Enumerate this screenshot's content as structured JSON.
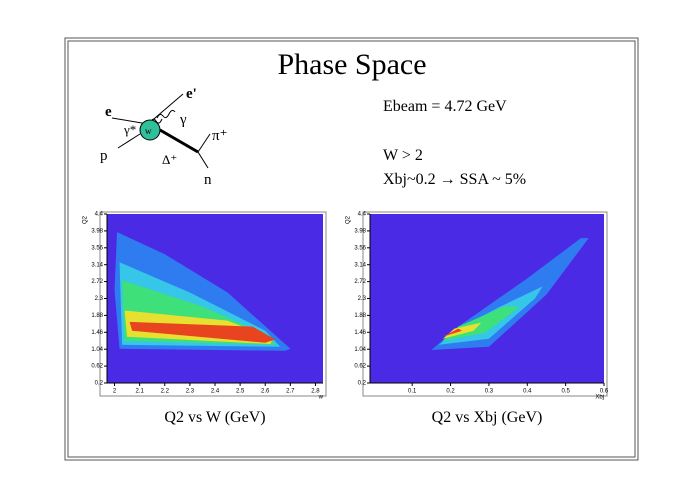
{
  "title": "Phase Space",
  "diagram": {
    "labels": [
      "e",
      "e'",
      "γ*",
      "γ",
      "w",
      "p",
      "Δ⁺",
      "π⁺",
      "n"
    ]
  },
  "notes": [
    "Ebeam = 4.72 GeV",
    "W > 2",
    "Xbj~0.2 → SSA ~ 5%"
  ],
  "chart_data": [
    {
      "type": "heatmap",
      "caption": "Q2 vs W (GeV)",
      "xlabel": "w",
      "ylabel": "Q2",
      "background": "#4b2ae6",
      "xlim": [
        1.97,
        2.83
      ],
      "ylim": [
        0.2,
        4.4
      ],
      "xticks": [
        2,
        2.1,
        2.2,
        2.3,
        2.4,
        2.5,
        2.6,
        2.7,
        2.8
      ],
      "yticks": [
        0.2,
        0.62,
        1.04,
        1.46,
        1.88,
        2.3,
        2.72,
        3.14,
        3.56,
        3.98,
        4.4
      ],
      "regions": [
        {
          "color": "#2f7cf0",
          "x": [
            2.01,
            2.2,
            2.45,
            2.7,
            2.68,
            2.02,
            2.0
          ],
          "y": [
            3.95,
            3.4,
            2.45,
            1.05,
            1.0,
            1.05,
            2.5
          ]
        },
        {
          "color": "#36c6e8",
          "x": [
            2.02,
            2.3,
            2.6,
            2.66,
            2.03
          ],
          "y": [
            3.2,
            2.45,
            1.5,
            1.1,
            1.15
          ]
        },
        {
          "color": "#3ee07a",
          "x": [
            2.03,
            2.35,
            2.62,
            2.64,
            2.04
          ],
          "y": [
            2.75,
            2.1,
            1.35,
            1.15,
            1.25
          ]
        },
        {
          "color": "#e8e030",
          "x": [
            2.04,
            2.45,
            2.63,
            2.62,
            2.05
          ],
          "y": [
            2.0,
            1.75,
            1.3,
            1.17,
            1.35
          ]
        },
        {
          "color": "#e84420",
          "x": [
            2.06,
            2.55,
            2.64,
            2.6,
            2.07
          ],
          "y": [
            1.72,
            1.6,
            1.28,
            1.2,
            1.5
          ]
        }
      ]
    },
    {
      "type": "heatmap",
      "caption": "Q2 vs Xbj (GeV)",
      "xlabel": "Xbj",
      "ylabel": "Q2",
      "background": "#4b2ae6",
      "xlim": [
        -0.01,
        0.6
      ],
      "ylim": [
        0.2,
        4.4
      ],
      "xticks": [
        0.1,
        0.2,
        0.3,
        0.4,
        0.5,
        0.6
      ],
      "yticks": [
        0.2,
        0.62,
        1.04,
        1.46,
        1.88,
        2.3,
        2.72,
        3.14,
        3.56,
        3.98,
        4.4
      ],
      "regions": [
        {
          "color": "#2f7cf0",
          "x": [
            0.15,
            0.3,
            0.45,
            0.56,
            0.54,
            0.4,
            0.22
          ],
          "y": [
            1.02,
            1.1,
            2.4,
            3.8,
            3.8,
            2.8,
            1.6
          ]
        },
        {
          "color": "#36c6e8",
          "x": [
            0.17,
            0.3,
            0.42,
            0.44,
            0.33,
            0.22
          ],
          "y": [
            1.15,
            1.3,
            2.3,
            2.6,
            2.1,
            1.55
          ]
        },
        {
          "color": "#3ee07a",
          "x": [
            0.18,
            0.29,
            0.38,
            0.34,
            0.22
          ],
          "y": [
            1.25,
            1.45,
            2.1,
            2.1,
            1.6
          ]
        },
        {
          "color": "#e8e030",
          "x": [
            0.18,
            0.26,
            0.28,
            0.21
          ],
          "y": [
            1.3,
            1.5,
            1.7,
            1.55
          ]
        },
        {
          "color": "#e84420",
          "x": [
            0.18,
            0.23,
            0.22
          ],
          "y": [
            1.35,
            1.5,
            1.55
          ]
        }
      ]
    }
  ]
}
